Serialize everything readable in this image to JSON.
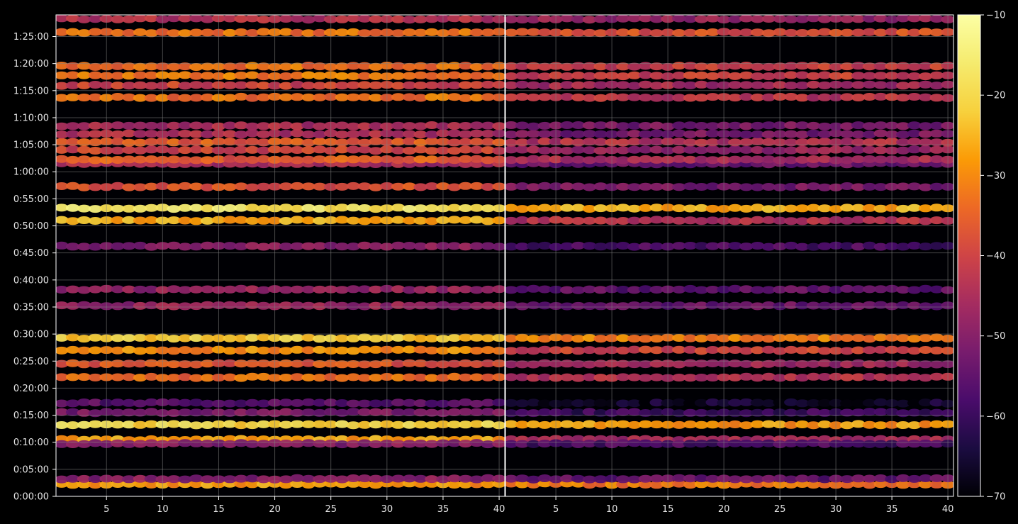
{
  "chart_data": {
    "type": "heatmap",
    "title": "",
    "xlabel": "",
    "ylabel": "",
    "panels": [
      {
        "name": "",
        "xlim": [
          1,
          40
        ],
        "xticks": [
          5,
          10,
          15,
          20,
          25,
          30,
          35,
          40
        ]
      },
      {
        "name": "",
        "xlim": [
          1,
          40
        ],
        "xticks": [
          5,
          10,
          15,
          20,
          25,
          30,
          35,
          40
        ]
      }
    ],
    "y_axis": {
      "range_seconds": [
        0,
        5340
      ],
      "tick_labels": [
        "0:00:00",
        "0:05:00",
        "0:10:00",
        "0:15:00",
        "0:20:00",
        "0:25:00",
        "0:30:00",
        "0:35:00",
        "0:40:00",
        "0:45:00",
        "0:50:00",
        "0:55:00",
        "1:00:00",
        "1:05:00",
        "1:10:00",
        "1:15:00",
        "1:20:00",
        "1:25:00"
      ],
      "tick_seconds": [
        0,
        300,
        600,
        900,
        1200,
        1500,
        1800,
        2100,
        2400,
        2700,
        3000,
        3300,
        3600,
        3900,
        4200,
        4500,
        4800,
        5100
      ]
    },
    "colorbar": {
      "colormap": "inferno",
      "range": [
        -70,
        -10
      ],
      "ticks": [
        -70,
        -60,
        -50,
        -40,
        -30,
        -20,
        -10
      ],
      "tick_labels": [
        "−70",
        "−60",
        "−50",
        "−40",
        "−30",
        "−20",
        "−10"
      ]
    },
    "bands": [
      {
        "center_s": 135,
        "left": -28,
        "right": -32
      },
      {
        "center_s": 195,
        "left": -50,
        "right": -55
      },
      {
        "center_s": 630,
        "left": -27,
        "right": -46
      },
      {
        "center_s": 585,
        "left": -50,
        "right": -58
      },
      {
        "center_s": 795,
        "left": -20,
        "right": -28
      },
      {
        "center_s": 930,
        "left": -52,
        "right": -60
      },
      {
        "center_s": 1035,
        "left": -56,
        "right": -66
      },
      {
        "center_s": 1320,
        "left": -34,
        "right": -44
      },
      {
        "center_s": 1470,
        "left": -37,
        "right": -47
      },
      {
        "center_s": 1620,
        "left": -29,
        "right": -40
      },
      {
        "center_s": 1755,
        "left": -22,
        "right": -31
      },
      {
        "center_s": 2115,
        "left": -48,
        "right": -54
      },
      {
        "center_s": 2295,
        "left": -48,
        "right": -55
      },
      {
        "center_s": 2775,
        "left": -50,
        "right": -58
      },
      {
        "center_s": 3060,
        "left": -26,
        "right": -44
      },
      {
        "center_s": 3195,
        "left": -17,
        "right": -26
      },
      {
        "center_s": 3435,
        "left": -38,
        "right": -52
      },
      {
        "center_s": 3690,
        "left": -46,
        "right": -54
      },
      {
        "center_s": 3735,
        "left": -36,
        "right": -45
      },
      {
        "center_s": 3840,
        "left": -40,
        "right": -48
      },
      {
        "center_s": 3930,
        "left": -36,
        "right": -44
      },
      {
        "center_s": 4020,
        "left": -45,
        "right": -52
      },
      {
        "center_s": 4110,
        "left": -45,
        "right": -52
      },
      {
        "center_s": 4425,
        "left": -33,
        "right": -43
      },
      {
        "center_s": 4560,
        "left": -40,
        "right": -46
      },
      {
        "center_s": 4665,
        "left": -32,
        "right": -41
      },
      {
        "center_s": 4770,
        "left": -33,
        "right": -41
      },
      {
        "center_s": 5145,
        "left": -33,
        "right": -38
      },
      {
        "center_s": 5295,
        "left": -44,
        "right": -48
      }
    ],
    "grid": true,
    "legend": "none"
  },
  "style": {
    "background": "#000000",
    "axes_color": "#ffffff",
    "text_color": "#e6e6e6",
    "grid_color": "#808080"
  }
}
